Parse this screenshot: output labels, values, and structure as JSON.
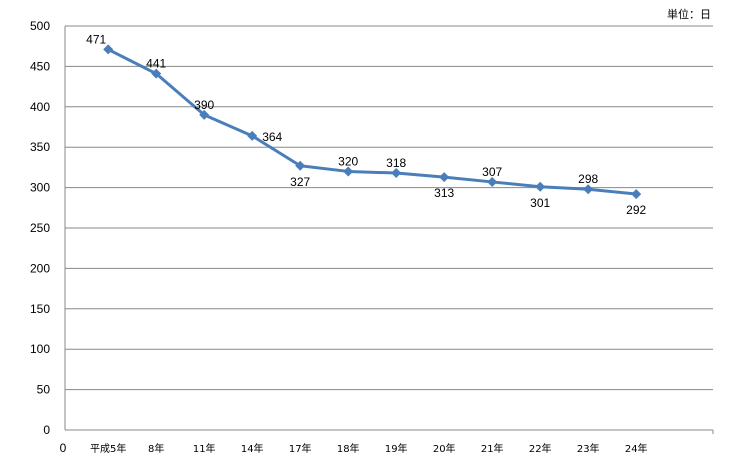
{
  "chart_data": {
    "type": "line",
    "unit_label": "単位：日",
    "origin_label": "0",
    "categories": [
      "平成5年",
      "8年",
      "11年",
      "14年",
      "17年",
      "18年",
      "19年",
      "20年",
      "21年",
      "22年",
      "23年",
      "24年"
    ],
    "series": [
      {
        "values": [
          471,
          441,
          390,
          364,
          327,
          320,
          318,
          313,
          307,
          301,
          298,
          292
        ],
        "color": "#4a7ebb"
      }
    ],
    "data_label_position": [
      "above",
      "above",
      "above",
      "right",
      "below",
      "above",
      "above",
      "below",
      "above",
      "below",
      "above",
      "below"
    ],
    "ylim": [
      0,
      500
    ],
    "yticks": [
      0,
      50,
      100,
      150,
      200,
      250,
      300,
      350,
      400,
      450,
      500
    ],
    "grid": true,
    "gridline_color": "#888888",
    "marker": "diamond",
    "legend": "none"
  }
}
